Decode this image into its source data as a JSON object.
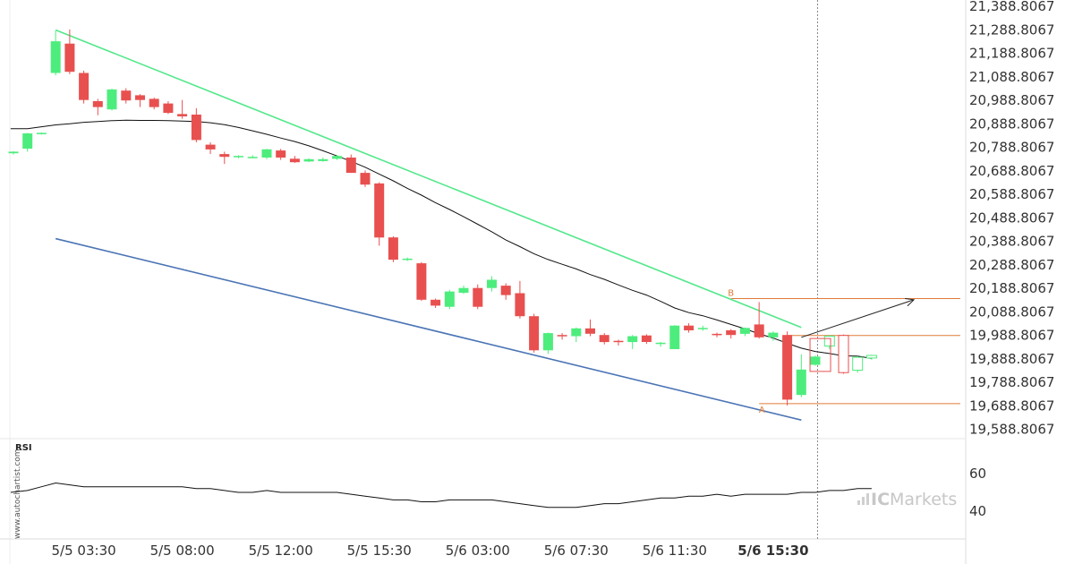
{
  "chart_data": {
    "type": "candlestick",
    "y_ticks": [
      "21,388.8067",
      "21,288.8067",
      "21,188.8067",
      "21,088.8067",
      "20,988.8067",
      "20,888.8067",
      "20,788.8067",
      "20,688.8067",
      "20,588.8067",
      "20,488.8067",
      "20,388.8067",
      "20,288.8067",
      "20,188.8067",
      "20,088.8067",
      "19,988.8067",
      "19,888.8067",
      "19,788.8067",
      "19,688.8067",
      "19,588.8067"
    ],
    "y_tick_values": [
      21388.8067,
      21288.8067,
      21188.8067,
      21088.8067,
      20988.8067,
      20888.8067,
      20788.8067,
      20688.8067,
      20588.8067,
      20488.8067,
      20388.8067,
      20288.8067,
      20188.8067,
      20088.8067,
      19988.8067,
      19888.8067,
      19788.8067,
      19688.8067,
      19588.8067
    ],
    "x_ticks": [
      {
        "label": "5/5 03:30",
        "i": 5
      },
      {
        "label": "5/5 08:00",
        "i": 12
      },
      {
        "label": "5/5 12:00",
        "i": 19
      },
      {
        "label": "5/5 15:30",
        "i": 26
      },
      {
        "label": "5/6 03:00",
        "i": 33
      },
      {
        "label": "5/6 07:30",
        "i": 40
      },
      {
        "label": "5/6 11:30",
        "i": 47
      },
      {
        "label": "5/6 15:30",
        "i": 54,
        "bold": true
      }
    ],
    "candles": [
      [
        20763,
        20770,
        20758,
        20772
      ],
      [
        20783,
        20848,
        20770,
        20850
      ],
      [
        20845,
        20850,
        20843,
        20852
      ],
      [
        21105,
        21240,
        21095,
        21285
      ],
      [
        21230,
        21110,
        21100,
        21290
      ],
      [
        21105,
        20990,
        20975,
        21115
      ],
      [
        20985,
        20960,
        20925,
        20995
      ],
      [
        20950,
        21035,
        20945,
        21038
      ],
      [
        21030,
        20988,
        20975,
        21040
      ],
      [
        21010,
        20990,
        20960,
        21015
      ],
      [
        20995,
        20960,
        20950,
        21000
      ],
      [
        20975,
        20935,
        20930,
        20985
      ],
      [
        20930,
        20920,
        20910,
        20990
      ],
      [
        20928,
        20820,
        20810,
        20955
      ],
      [
        20800,
        20780,
        20760,
        20810
      ],
      [
        20760,
        20748,
        20718,
        20770
      ],
      [
        20750,
        20752,
        20742,
        20755
      ],
      [
        20747,
        20748,
        20742,
        20755
      ],
      [
        20745,
        20780,
        20738,
        20782
      ],
      [
        20775,
        20745,
        20735,
        20782
      ],
      [
        20740,
        20725,
        20722,
        20752
      ],
      [
        20728,
        20738,
        20726,
        20742
      ],
      [
        20730,
        20738,
        20727,
        20745
      ],
      [
        20740,
        20752,
        20735,
        20756
      ],
      [
        20745,
        20680,
        20680,
        20758
      ],
      [
        20680,
        20630,
        20620,
        20690
      ],
      [
        20635,
        20405,
        20370,
        20640
      ],
      [
        20405,
        20310,
        20300,
        20410
      ],
      [
        20312,
        20315,
        20305,
        20320
      ],
      [
        20295,
        20140,
        20135,
        20300
      ],
      [
        20140,
        20115,
        20105,
        20145
      ],
      [
        20110,
        20175,
        20100,
        20182
      ],
      [
        20170,
        20190,
        20165,
        20200
      ],
      [
        20190,
        20110,
        20100,
        20205
      ],
      [
        20190,
        20225,
        20175,
        20240
      ],
      [
        20200,
        20160,
        20140,
        20210
      ],
      [
        20168,
        20070,
        20060,
        20220
      ],
      [
        20070,
        19925,
        19915,
        20080
      ],
      [
        19925,
        19998,
        19910,
        20000
      ],
      [
        19990,
        19988,
        19970,
        19998
      ],
      [
        19985,
        20018,
        19960,
        20022
      ],
      [
        20018,
        19995,
        19985,
        20056
      ],
      [
        19990,
        19960,
        19950,
        19998
      ],
      [
        19965,
        19960,
        19945,
        19970
      ],
      [
        19960,
        19985,
        19930,
        19990
      ],
      [
        19988,
        19960,
        19952,
        19993
      ],
      [
        19955,
        19957,
        19940,
        19960
      ],
      [
        19930,
        20030,
        19930,
        20032
      ],
      [
        20030,
        20010,
        20000,
        20040
      ],
      [
        20018,
        20020,
        20008,
        20030
      ],
      [
        19995,
        19990,
        19980,
        20000
      ],
      [
        20010,
        19990,
        19975,
        20015
      ],
      [
        19995,
        20020,
        19985,
        20022
      ],
      [
        20035,
        19980,
        19975,
        20130
      ],
      [
        19980,
        20000,
        19965,
        20005
      ],
      [
        19990,
        19715,
        19690,
        20005
      ],
      [
        19735,
        19843,
        19725,
        19908
      ],
      [
        19863,
        19898,
        19860,
        19902
      ],
      [
        19943,
        19985,
        19930,
        19990
      ],
      [
        19988,
        19830,
        19825,
        19992
      ],
      [
        19840,
        19895,
        19830,
        19900
      ],
      [
        19892,
        19903,
        19885,
        19906
      ]
    ],
    "hollow_from": 58,
    "moving_average": [
      20868,
      20868,
      20876,
      20884,
      20889,
      20895,
      20898,
      20902,
      20904,
      20903,
      20903,
      20902,
      20900,
      20898,
      20893,
      20885,
      20873,
      20859,
      20844,
      20828,
      20813,
      20795,
      20774,
      20752,
      20729,
      20704,
      20675,
      20646,
      20614,
      20585,
      20553,
      20524,
      20493,
      20461,
      20429,
      20394,
      20366,
      20336,
      20311,
      20291,
      20271,
      20247,
      20227,
      20203,
      20180,
      20160,
      20133,
      20105,
      20085,
      20072,
      20054,
      20035,
      20016,
      19995,
      19977,
      19955,
      19934,
      19920,
      19911,
      19901,
      19900,
      19890
    ],
    "rsi": [
      50,
      51,
      53,
      55,
      54,
      53,
      53,
      53,
      53,
      53,
      53,
      53,
      53,
      52,
      52,
      51,
      50,
      50,
      51,
      50,
      50,
      50,
      50,
      50,
      49,
      48,
      47,
      46,
      46,
      45,
      45,
      46,
      46,
      46,
      46,
      45,
      44,
      43,
      42,
      42,
      42,
      43,
      44,
      44,
      45,
      46,
      47,
      47,
      48,
      48,
      49,
      48,
      49,
      49,
      49,
      49,
      50,
      50,
      51,
      51,
      52,
      52
    ],
    "rsi_ticks": [
      {
        "label": "60",
        "v": 60
      },
      {
        "label": "40",
        "v": 40
      }
    ],
    "resistance_line": {
      "from": [
        3,
        21288
      ],
      "to": [
        56,
        20022
      ]
    },
    "support_line": {
      "from": [
        3,
        20400
      ],
      "to": [
        56,
        19628
      ]
    },
    "levels": [
      {
        "name": "B",
        "y": 20145,
        "from": 51
      },
      {
        "name": "A",
        "y": 19698,
        "from": 53
      },
      {
        "name": "",
        "y": 19988,
        "from": 55
      }
    ],
    "forecast_box": {
      "from_i": 57,
      "to_i": 57.7,
      "top": 19975,
      "bottom": 19835
    },
    "forecast_arrow": {
      "from": [
        56,
        19980
      ],
      "to": [
        64,
        20140
      ]
    },
    "point_labels": [
      {
        "text": "B",
        "i": 51,
        "y": 20145
      },
      {
        "text": "A",
        "i": 53.2,
        "y": 19698
      }
    ]
  },
  "rsi_label": "RSI",
  "watermark": "www.autochartist.com",
  "brand": {
    "ic": "IC",
    "markets": "Markets"
  },
  "colors": {
    "up": "#4ded7d",
    "down": "#e8504f",
    "resistance": "#52e88a",
    "support": "#4a74b5",
    "ma": "#111111",
    "level": "#e07b39",
    "arrow": "#222222",
    "grid": "#e8e8e8"
  }
}
